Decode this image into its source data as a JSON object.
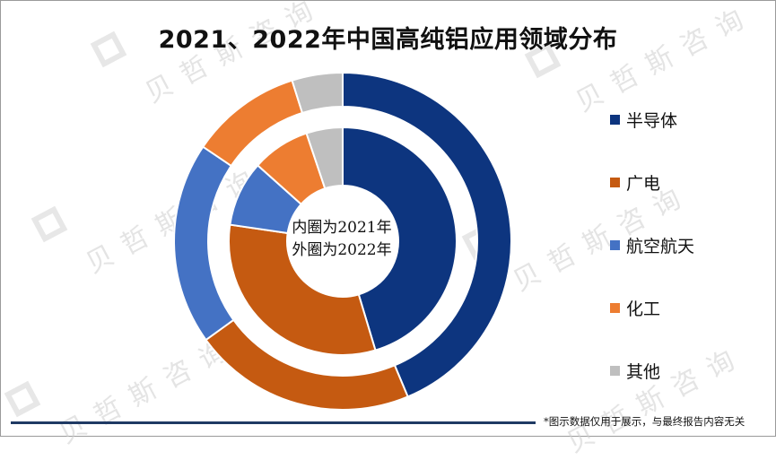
{
  "title": "2021、2022年中国高纯铝应用领域分布",
  "center_label": {
    "line1": "内圈为2021年",
    "line2": "外圈为2022年"
  },
  "footer_note": "*图示数据仅用于展示，与最终报告内容无关",
  "watermark_text": "贝哲斯咨询",
  "chart_data": {
    "type": "donut",
    "title": "2021、2022年中国高纯铝应用领域分布",
    "categories": [
      "半导体",
      "广电",
      "航空航天",
      "化工",
      "其他"
    ],
    "colors": [
      "#0d357f",
      "#c55a11",
      "#4472c4",
      "#ed7d31",
      "#bfbfbf"
    ],
    "series": [
      {
        "name": "2021年",
        "ring": "inner",
        "values": [
          44,
          31,
          9,
          8,
          5
        ]
      },
      {
        "name": "2022年",
        "ring": "outer",
        "values": [
          45,
          22,
          20,
          11,
          5
        ]
      }
    ],
    "legend": "right"
  }
}
